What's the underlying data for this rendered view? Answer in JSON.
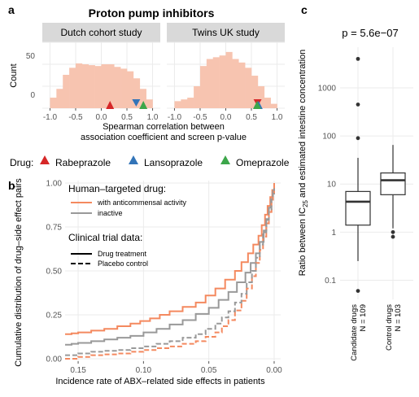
{
  "panel_a": {
    "letter": "a",
    "title": "Proton pump inhibitors",
    "facets": [
      "Dutch cohort study",
      "Twins UK study"
    ],
    "ylabel": "Count",
    "xlabel_line1": "Spearman correlation between",
    "xlabel_line2": "association coefficient and screen p-value",
    "xticks": [
      "-1.0",
      "-0.5",
      "0.0",
      "0.5",
      "1.0"
    ],
    "yticks": [
      "0",
      "50"
    ],
    "legend": {
      "title": "Drug:",
      "items": [
        {
          "label": "Rabeprazole",
          "color": "#d62728"
        },
        {
          "label": "Lansoprazole",
          "color": "#3274b8"
        },
        {
          "label": "Omeprazole",
          "color": "#3ca64a"
        }
      ]
    }
  },
  "panel_b": {
    "letter": "b",
    "ylabel": "Cumulative distribution of drug–side effect pairs",
    "xlabel": "Incidence rate of ABX–related side effects in patients",
    "xticks": [
      "0.15",
      "0.10",
      "0.05",
      "0.00"
    ],
    "yticks": [
      "0.00",
      "0.25",
      "0.50",
      "0.75",
      "1.00"
    ],
    "legend": {
      "title1": "Human–targeted drug:",
      "item_orange": "with anticommensal activity",
      "item_gray": "inactive",
      "title2": "Clinical trial data:",
      "item_solid": "Drug treatment",
      "item_dashed": "Placebo control"
    },
    "colors": {
      "orange": "#f4895f",
      "gray": "#999999"
    }
  },
  "panel_c": {
    "letter": "c",
    "pvalue": "p = 5.6e−07",
    "ylabel_pre": "Ratio between IC",
    "ylabel_sub": "25",
    "ylabel_post": " and estimated intestine concentration",
    "yticks": [
      "0.1",
      "1",
      "10",
      "100",
      "1000"
    ],
    "groups": [
      {
        "line1": "Candidate drugs",
        "line2": "N = 109"
      },
      {
        "line1": "Control drugs",
        "line2": "N = 103"
      }
    ]
  },
  "chart_data": [
    {
      "type": "bar",
      "title": "Proton pump inhibitors",
      "facets": [
        {
          "name": "Dutch cohort study",
          "bin_edges": [
            -1.0,
            -0.875,
            -0.75,
            -0.625,
            -0.5,
            -0.375,
            -0.25,
            -0.125,
            0.0,
            0.125,
            0.25,
            0.375,
            0.5,
            0.625,
            0.75,
            0.875,
            1.0
          ],
          "values": [
            12,
            22,
            38,
            46,
            51,
            50,
            49,
            48,
            50,
            50,
            47,
            45,
            42,
            34,
            22,
            10
          ],
          "markers": [
            {
              "drug": "Rabeprazole",
              "x": 0.17,
              "direction": "up"
            },
            {
              "drug": "Lansoprazole",
              "x": 0.68,
              "direction": "down"
            },
            {
              "drug": "Omeprazole",
              "x": 0.82,
              "direction": "up"
            }
          ]
        },
        {
          "name": "Twins UK study",
          "bin_edges": [
            -1.0,
            -0.875,
            -0.75,
            -0.625,
            -0.5,
            -0.375,
            -0.25,
            -0.125,
            0.0,
            0.125,
            0.25,
            0.375,
            0.5,
            0.625,
            0.75,
            0.875,
            1.0
          ],
          "values": [
            8,
            10,
            12,
            25,
            48,
            56,
            58,
            60,
            64,
            56,
            52,
            46,
            37,
            25,
            12,
            5
          ],
          "markers": [
            {
              "drug": "Rabeprazole",
              "x": 0.62,
              "direction": "down"
            },
            {
              "drug": "Lansoprazole",
              "x": 0.64,
              "direction": "up"
            },
            {
              "drug": "Omeprazole",
              "x": 0.61,
              "direction": "up"
            }
          ]
        }
      ],
      "xlabel": "Spearman correlation between association coefficient and screen p-value",
      "ylabel": "Count",
      "xlim": [
        -1.15,
        1.15
      ],
      "ylim": [
        0,
        75
      ]
    },
    {
      "type": "line",
      "xlabel": "Incidence rate of ABX–related side effects in patients",
      "ylabel": "Cumulative distribution of drug–side effect pairs",
      "xlim": [
        0.16,
        -0.005
      ],
      "x_reversed": true,
      "ylim": [
        0,
        1.0
      ],
      "series": [
        {
          "name": "with anticommensal activity",
          "trial": "Drug treatment",
          "color": "orange",
          "dash": false,
          "points": [
            [
              0.16,
              0.14
            ],
            [
              0.15,
              0.15
            ],
            [
              0.13,
              0.17
            ],
            [
              0.11,
              0.2
            ],
            [
              0.095,
              0.23
            ],
            [
              0.08,
              0.27
            ],
            [
              0.06,
              0.32
            ],
            [
              0.045,
              0.4
            ],
            [
              0.03,
              0.5
            ],
            [
              0.02,
              0.6
            ],
            [
              0.012,
              0.7
            ],
            [
              0.007,
              0.82
            ],
            [
              0.003,
              0.92
            ],
            [
              0.0,
              1.0
            ]
          ]
        },
        {
          "name": "inactive",
          "trial": "Drug treatment",
          "color": "gray",
          "dash": false,
          "points": [
            [
              0.16,
              0.08
            ],
            [
              0.15,
              0.09
            ],
            [
              0.13,
              0.11
            ],
            [
              0.11,
              0.13
            ],
            [
              0.09,
              0.17
            ],
            [
              0.07,
              0.22
            ],
            [
              0.05,
              0.29
            ],
            [
              0.035,
              0.38
            ],
            [
              0.022,
              0.49
            ],
            [
              0.014,
              0.6
            ],
            [
              0.008,
              0.73
            ],
            [
              0.004,
              0.86
            ],
            [
              0.001,
              0.95
            ],
            [
              0.0,
              0.97
            ]
          ]
        },
        {
          "name": "with anticommensal activity",
          "trial": "Placebo control",
          "color": "orange",
          "dash": true,
          "points": [
            [
              0.16,
              0.0
            ],
            [
              0.14,
              0.02
            ],
            [
              0.12,
              0.03
            ],
            [
              0.1,
              0.05
            ],
            [
              0.08,
              0.07
            ],
            [
              0.06,
              0.1
            ],
            [
              0.045,
              0.15
            ],
            [
              0.035,
              0.22
            ],
            [
              0.025,
              0.33
            ],
            [
              0.017,
              0.47
            ],
            [
              0.011,
              0.62
            ],
            [
              0.006,
              0.77
            ],
            [
              0.002,
              0.9
            ],
            [
              0.0,
              0.96
            ]
          ]
        },
        {
          "name": "inactive",
          "trial": "Placebo control",
          "color": "gray",
          "dash": true,
          "points": [
            [
              0.16,
              0.02
            ],
            [
              0.14,
              0.04
            ],
            [
              0.12,
              0.05
            ],
            [
              0.1,
              0.07
            ],
            [
              0.08,
              0.1
            ],
            [
              0.06,
              0.14
            ],
            [
              0.045,
              0.2
            ],
            [
              0.035,
              0.27
            ],
            [
              0.025,
              0.37
            ],
            [
              0.017,
              0.5
            ],
            [
              0.011,
              0.65
            ],
            [
              0.006,
              0.79
            ],
            [
              0.002,
              0.91
            ],
            [
              0.0,
              0.97
            ]
          ]
        }
      ]
    },
    {
      "type": "box",
      "ylabel": "Ratio between IC25 and estimated intestine concentration",
      "yscale": "log",
      "ylim": [
        0.04,
        7000
      ],
      "categories": [
        "Candidate drugs",
        "Control drugs"
      ],
      "boxes": [
        {
          "whisker_low": 0.25,
          "q1": 1.4,
          "median": 4.3,
          "q3": 7.0,
          "whisker_high": 35,
          "outliers": [
            0.06,
            90,
            450,
            4000
          ]
        },
        {
          "whisker_low": 1.2,
          "q1": 6.0,
          "median": 12,
          "q3": 17,
          "whisker_high": 65,
          "outliers": [
            0.8,
            1.0
          ]
        }
      ],
      "annotation": "p = 5.6e−07"
    }
  ]
}
